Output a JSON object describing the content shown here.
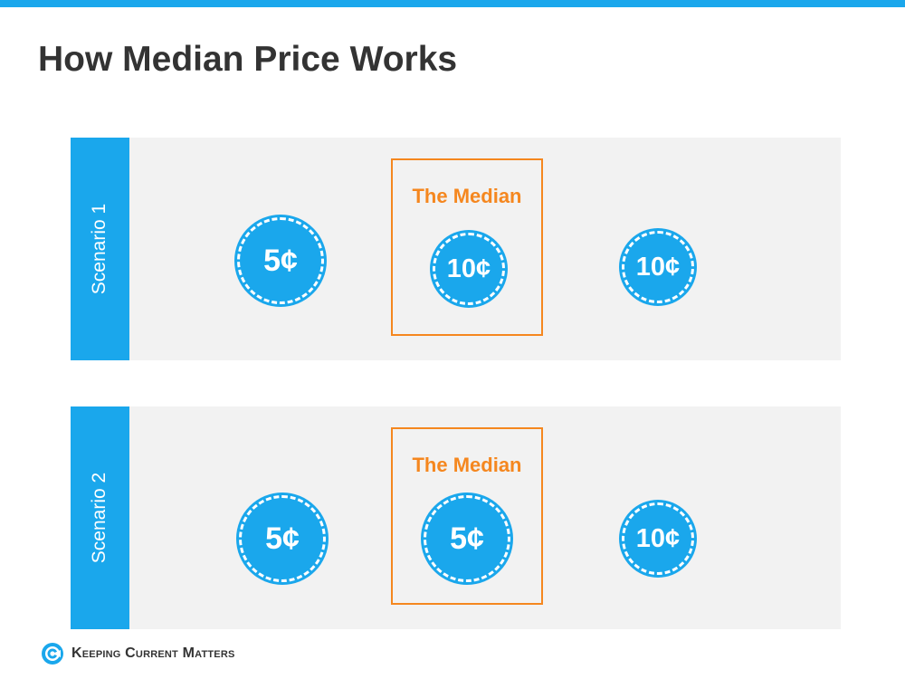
{
  "title": "How Median Price Works",
  "colors": {
    "accent": "#1aa7ec",
    "median": "#f5871f",
    "panel_bg": "#f2f2f2",
    "title": "#333333"
  },
  "scenarios": [
    {
      "label": "Scenario 1",
      "median_label": "The Median",
      "coins": [
        "5¢",
        "10¢",
        "10¢"
      ]
    },
    {
      "label": "Scenario 2",
      "median_label": "The Median",
      "coins": [
        "5¢",
        "5¢",
        "10¢"
      ]
    }
  ],
  "footer": {
    "logo_text": "Keeping Current Matters",
    "logo_icon": "kcm-swirl-icon"
  }
}
